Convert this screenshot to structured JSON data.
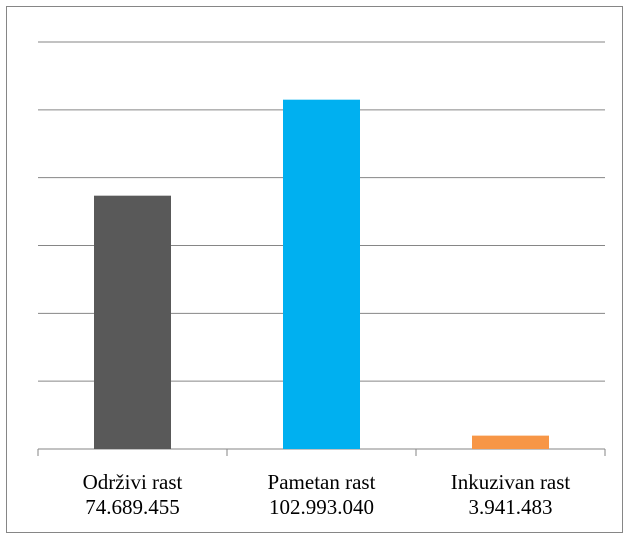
{
  "chart_data": {
    "type": "bar",
    "categories": [
      "Održivi rast",
      "Pametan rast",
      "Inkuzivan rast"
    ],
    "values": [
      74689455,
      102993040,
      3941483
    ],
    "value_labels": [
      "74.689.455",
      "102.993.040",
      "3.941.483"
    ],
    "colors": [
      "#595959",
      "#00b0f0",
      "#f79646"
    ],
    "ylim": [
      0,
      120000000
    ],
    "yticks": [
      0,
      20000000,
      40000000,
      60000000,
      80000000,
      100000000,
      120000000
    ],
    "grid": true
  }
}
